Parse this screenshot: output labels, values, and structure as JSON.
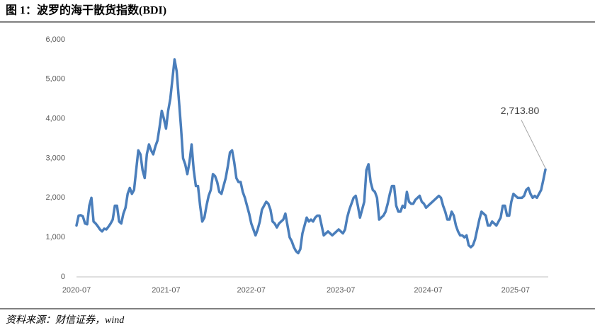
{
  "chart_data": {
    "type": "line",
    "title": "图 1：波罗的海干散货指数(BDI)",
    "source": "资料来源：财信证券，wind",
    "color": "#4a7ebb",
    "grid": false,
    "ylim": [
      0,
      6000
    ],
    "yticks": [
      0,
      {
        "value": 1000,
        "label": "1,000"
      },
      {
        "value": 2000,
        "label": "2,000"
      },
      {
        "value": 3000,
        "label": "3,000"
      },
      {
        "value": 4000,
        "label": "4,000"
      },
      {
        "value": 5000,
        "label": "5,000"
      },
      {
        "value": 6000,
        "label": "6,000"
      }
    ],
    "categories": [
      "2020-07",
      null,
      null,
      null,
      null,
      null,
      null,
      null,
      null,
      null,
      null,
      null,
      null,
      null,
      null,
      null,
      null,
      null,
      null,
      null,
      null,
      null,
      null,
      null,
      null,
      null,
      null,
      null,
      null,
      null,
      null,
      null,
      null,
      null,
      null,
      null,
      null,
      null,
      null,
      null,
      null,
      null,
      "2021-07",
      null,
      null,
      null,
      null,
      null,
      null,
      null,
      null,
      null,
      null,
      null,
      null,
      null,
      null,
      null,
      null,
      null,
      null,
      null,
      null,
      null,
      null,
      null,
      null,
      null,
      null,
      null,
      null,
      null,
      null,
      null,
      null,
      null,
      null,
      null,
      null,
      null,
      null,
      null,
      "2022-07",
      null,
      null,
      null,
      null,
      null,
      null,
      null,
      null,
      null,
      null,
      null,
      null,
      null,
      null,
      null,
      null,
      null,
      null,
      null,
      null,
      null,
      null,
      null,
      null,
      null,
      null,
      null,
      null,
      null,
      null,
      null,
      null,
      null,
      null,
      null,
      null,
      null,
      null,
      null,
      null,
      null,
      "2023-07",
      null,
      null,
      null,
      null,
      null,
      null,
      null,
      null,
      null,
      null,
      null,
      null,
      null,
      null,
      null,
      null,
      null,
      null,
      null,
      null,
      null,
      null,
      null,
      null,
      null,
      null,
      null,
      null,
      null,
      null,
      null,
      null,
      null,
      null,
      null,
      null,
      null,
      null,
      null,
      null,
      "2024-07",
      null,
      null,
      null,
      null,
      null,
      null,
      null,
      null,
      null,
      null,
      null,
      null,
      null,
      null,
      null,
      null,
      null,
      null,
      null,
      null,
      null,
      null,
      null,
      null,
      null,
      null,
      null,
      null,
      null,
      null,
      null,
      null,
      null,
      null,
      null,
      null,
      null,
      null,
      null,
      null,
      "2025-07",
      null,
      null,
      null,
      null,
      null,
      null,
      null,
      null,
      null,
      null,
      null,
      null,
      null,
      null
    ],
    "values": [
      1300,
      1550,
      1560,
      1530,
      1350,
      1330,
      1800,
      2000,
      1400,
      1350,
      1280,
      1200,
      1150,
      1220,
      1200,
      1270,
      1350,
      1450,
      1800,
      1800,
      1400,
      1350,
      1600,
      1750,
      2100,
      2250,
      2100,
      2200,
      2700,
      3200,
      3100,
      2700,
      2500,
      3100,
      3350,
      3200,
      3100,
      3300,
      3450,
      3800,
      4200,
      4000,
      3750,
      4200,
      4500,
      5000,
      5500,
      5200,
      4500,
      3800,
      3000,
      2850,
      2600,
      2900,
      3350,
      2700,
      2300,
      2300,
      1800,
      1400,
      1500,
      1800,
      2050,
      2200,
      2600,
      2550,
      2400,
      2150,
      2100,
      2300,
      2500,
      2800,
      3150,
      3200,
      2900,
      2500,
      2400,
      2400,
      2150,
      2000,
      1800,
      1600,
      1350,
      1200,
      1050,
      1200,
      1400,
      1700,
      1800,
      1900,
      1850,
      1700,
      1400,
      1350,
      1250,
      1350,
      1400,
      1450,
      1600,
      1300,
      1000,
      900,
      750,
      650,
      600,
      700,
      1100,
      1300,
      1500,
      1400,
      1450,
      1400,
      1500,
      1550,
      1550,
      1300,
      1050,
      1100,
      1150,
      1100,
      1050,
      1100,
      1150,
      1200,
      1150,
      1100,
      1200,
      1500,
      1700,
      1850,
      2000,
      2050,
      1800,
      1500,
      1700,
      1900,
      2700,
      2850,
      2400,
      2200,
      2150,
      2000,
      1450,
      1500,
      1550,
      1650,
      1850,
      2100,
      2300,
      2300,
      1800,
      1650,
      1650,
      1800,
      1750,
      2150,
      1900,
      1850,
      1850,
      1950,
      2000,
      2050,
      1900,
      1850,
      1750,
      1800,
      1850,
      1900,
      1950,
      2000,
      2050,
      2000,
      1800,
      1650,
      1450,
      1450,
      1650,
      1550,
      1300,
      1150,
      1050,
      1050,
      1000,
      1050,
      800,
      750,
      800,
      950,
      1200,
      1450,
      1650,
      1600,
      1550,
      1300,
      1300,
      1400,
      1350,
      1300,
      1400,
      1500,
      1800,
      1800,
      1550,
      1550,
      1900,
      2100,
      2050,
      2000,
      2000,
      2000,
      2050,
      2200,
      2250,
      2100,
      2000,
      2050,
      2000,
      2100,
      2200,
      2450,
      2713.8
    ],
    "value_labels": [
      null,
      null,
      null,
      null,
      null,
      null,
      null,
      null,
      null,
      null,
      null,
      null,
      null,
      null,
      null,
      null,
      null,
      null,
      null,
      null,
      null,
      null,
      null,
      null,
      null,
      null,
      null,
      null,
      null,
      null,
      null,
      null,
      null,
      null,
      null,
      null,
      null,
      null,
      null,
      null,
      null,
      null,
      null,
      null,
      null,
      null,
      null,
      null,
      null,
      null,
      null,
      null,
      null,
      null,
      null,
      null,
      null,
      null,
      null,
      null,
      null,
      null,
      null,
      null,
      null,
      null,
      null,
      null,
      null,
      null,
      null,
      null,
      null,
      null,
      null,
      null,
      null,
      null,
      null,
      null,
      null,
      null,
      null,
      null,
      null,
      null,
      null,
      null,
      null,
      null,
      null,
      null,
      null,
      null,
      null,
      null,
      null,
      null,
      null,
      null,
      null,
      null,
      null,
      null,
      null,
      null,
      null,
      null,
      null,
      null,
      null,
      null,
      null,
      null,
      null,
      null,
      null,
      null,
      null,
      null,
      null,
      null,
      null,
      null,
      null,
      null,
      null,
      null,
      null,
      null,
      null,
      null,
      null,
      null,
      null,
      null,
      null,
      null,
      null,
      null,
      null,
      null,
      null,
      null,
      null,
      null,
      null,
      null,
      null,
      null,
      null,
      null,
      null,
      null,
      null,
      null,
      null,
      null,
      null,
      null,
      null,
      null,
      null,
      null,
      null,
      null,
      null,
      null,
      null,
      null,
      null,
      null,
      null,
      null,
      null,
      null,
      null,
      null,
      null,
      null,
      null,
      null,
      null,
      null,
      null,
      null,
      null,
      null,
      null,
      null,
      null,
      null,
      null,
      null,
      null,
      null,
      null,
      null,
      null,
      null,
      null,
      null,
      null,
      null,
      null,
      null,
      null,
      null,
      null,
      null,
      null,
      null,
      null,
      null,
      null,
      null,
      null,
      null,
      null,
      null,
      "2,713.80"
    ]
  }
}
